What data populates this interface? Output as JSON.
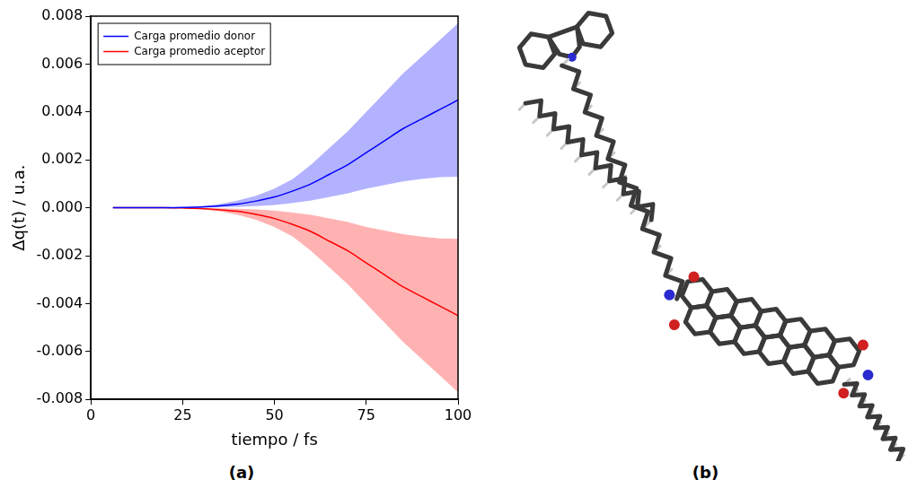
{
  "chart_data": {
    "type": "line",
    "x_label": "tiempo / fs",
    "y_label": "Δq(t) / u.a.",
    "x": [
      6,
      10,
      15,
      20,
      25,
      30,
      35,
      40,
      45,
      50,
      55,
      60,
      65,
      70,
      75,
      80,
      85,
      90,
      95,
      100
    ],
    "series": [
      {
        "name": "Carga promedio donor",
        "color": "#0000ff",
        "values": [
          0,
          0,
          0,
          0,
          1e-05,
          3e-05,
          8e-05,
          0.00015,
          0.00028,
          0.00045,
          0.0007,
          0.001,
          0.0014,
          0.0018,
          0.0023,
          0.0028,
          0.0033,
          0.0037,
          0.0041,
          0.0045
        ],
        "lower": [
          0,
          0,
          0,
          0,
          0,
          1e-05,
          2e-05,
          4e-05,
          7e-05,
          0.00012,
          0.0002,
          0.0003,
          0.00045,
          0.0006,
          0.0008,
          0.00095,
          0.0011,
          0.0012,
          0.00128,
          0.0013
        ],
        "upper": [
          0,
          0,
          0,
          0,
          2e-05,
          6e-05,
          0.00015,
          0.0003,
          0.0005,
          0.0008,
          0.0012,
          0.0018,
          0.0025,
          0.0032,
          0.004,
          0.0048,
          0.0056,
          0.0063,
          0.007,
          0.0077
        ]
      },
      {
        "name": "Carga promedio aceptor",
        "color": "#ff0000",
        "values": [
          0,
          0,
          0,
          0,
          -1e-05,
          -3e-05,
          -8e-05,
          -0.00015,
          -0.00028,
          -0.00045,
          -0.0007,
          -0.001,
          -0.0014,
          -0.0018,
          -0.0023,
          -0.0028,
          -0.0033,
          -0.0037,
          -0.0041,
          -0.0045
        ],
        "lower": [
          0,
          0,
          0,
          0,
          -2e-05,
          -6e-05,
          -0.00015,
          -0.0003,
          -0.0005,
          -0.0008,
          -0.0012,
          -0.0018,
          -0.0025,
          -0.0032,
          -0.004,
          -0.0048,
          -0.0056,
          -0.0063,
          -0.007,
          -0.0077
        ],
        "upper": [
          0,
          0,
          0,
          0,
          0,
          -1e-05,
          -2e-05,
          -4e-05,
          -7e-05,
          -0.00012,
          -0.0002,
          -0.0003,
          -0.00045,
          -0.0006,
          -0.0008,
          -0.00095,
          -0.0011,
          -0.0012,
          -0.00128,
          -0.0013
        ]
      }
    ],
    "xlim": [
      0,
      100
    ],
    "xticks": [
      0,
      25,
      50,
      75,
      100
    ],
    "ylim": [
      -0.008,
      0.008
    ],
    "yticks": [
      -0.008,
      -0.006,
      -0.004,
      -0.002,
      {
        "value": 0,
        "label": "0.000"
      },
      0.002,
      0.004,
      0.006,
      0.008
    ],
    "grid": false,
    "legend": "upper left"
  },
  "panel_labels": [
    "(a)",
    "(b)"
  ]
}
